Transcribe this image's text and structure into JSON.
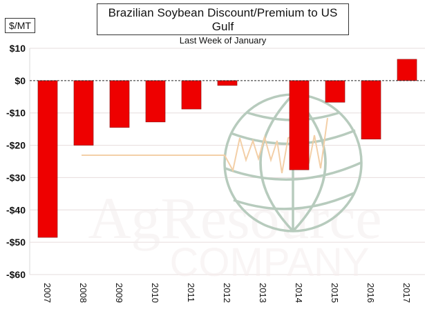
{
  "chart_data": {
    "type": "bar",
    "title": "Brazilian Soybean Discount/Premium to US Gulf",
    "subtitle": "Last Week of January",
    "ylabel": "$/MT",
    "xlabel": "",
    "categories": [
      "2007",
      "2008",
      "2009",
      "2010",
      "2011",
      "2012",
      "2013",
      "2014",
      "2015",
      "2016",
      "2017"
    ],
    "values": [
      -48.5,
      -20,
      -14.5,
      -12.8,
      -8.8,
      -1.5,
      0,
      -27.6,
      -6.7,
      -18.1,
      6.6
    ],
    "ylim": [
      -60,
      10
    ],
    "yticks": [
      10,
      0,
      -10,
      -20,
      -30,
      -40,
      -50,
      -60
    ],
    "ytick_labels": [
      "$10",
      "$0",
      "-$10",
      "-$20",
      "-$30",
      "-$40",
      "-$50",
      "-$60"
    ],
    "grid": true,
    "zero_line": "dashed",
    "legend": "none",
    "colors": {
      "bar": "#ee0000",
      "bar_border": "#8b1a1a",
      "grid": "#e6dcdc",
      "watermark_globe": "#b7cbbd",
      "watermark_wave": "#f3cfa7"
    }
  },
  "watermark": {
    "text_line1": "AgResource",
    "text_line2": "COMPANY"
  }
}
